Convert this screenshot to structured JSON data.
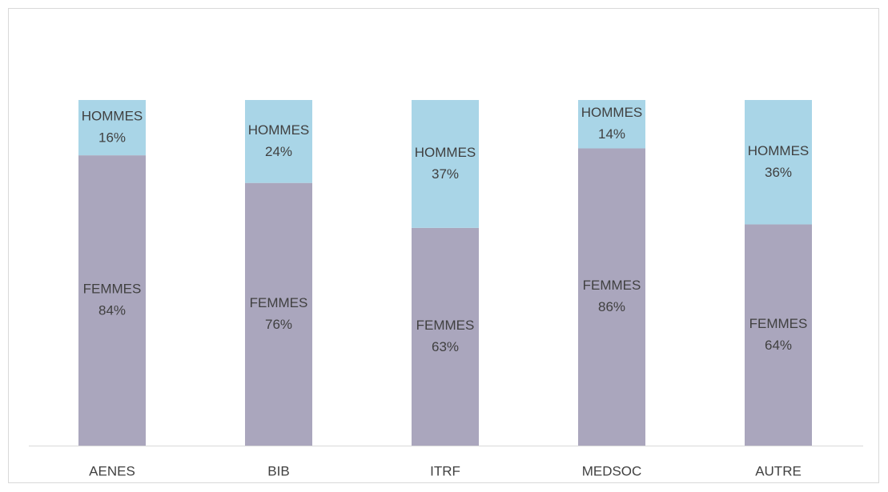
{
  "chart_data": {
    "type": "stacked_bar",
    "categories": [
      "AENES",
      "BIB",
      "ITRF",
      "MEDSOC",
      "AUTRE"
    ],
    "series": [
      {
        "name": "FEMMES",
        "color": "#aaa6bd",
        "values": [
          84,
          76,
          63,
          86,
          64
        ],
        "value_labels": [
          "84%",
          "76%",
          "63%",
          "86%",
          "64%"
        ]
      },
      {
        "name": "HOMMES",
        "color": "#a9d5e7",
        "values": [
          16,
          24,
          37,
          14,
          36
        ],
        "value_labels": [
          "16%",
          "24%",
          "37%",
          "14%",
          "36%"
        ]
      }
    ],
    "ylim": [
      0,
      100
    ],
    "grid": false
  }
}
